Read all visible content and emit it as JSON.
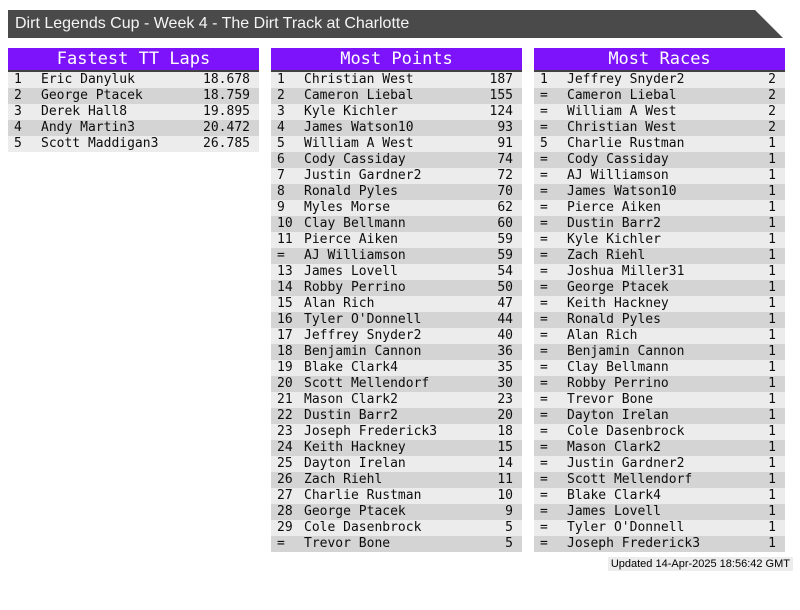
{
  "title": "Dirt Legends Cup - Week 4 - The Dirt Track at Charlotte",
  "colors": {
    "accent_purple": "#7d13fb",
    "titlebar_gray": "#4a4a4a",
    "row_light": "#ececec",
    "row_dark": "#d4d4d4"
  },
  "boards": [
    {
      "title": "Fastest TT Laps",
      "rows": [
        [
          "1",
          "Eric Danyluk",
          "18.678"
        ],
        [
          "2",
          "George Ptacek",
          "18.759"
        ],
        [
          "3",
          "Derek Hall8",
          "19.895"
        ],
        [
          "4",
          "Andy Martin3",
          "20.472"
        ],
        [
          "5",
          "Scott Maddigan3",
          "26.785"
        ]
      ]
    },
    {
      "title": "Most Points",
      "rows": [
        [
          "1",
          "Christian West",
          "187"
        ],
        [
          "2",
          "Cameron Liebal",
          "155"
        ],
        [
          "3",
          "Kyle Kichler",
          "124"
        ],
        [
          "4",
          "James Watson10",
          "93"
        ],
        [
          "5",
          "William A West",
          "91"
        ],
        [
          "6",
          "Cody Cassiday",
          "74"
        ],
        [
          "7",
          "Justin Gardner2",
          "72"
        ],
        [
          "8",
          "Ronald Pyles",
          "70"
        ],
        [
          "9",
          "Myles Morse",
          "62"
        ],
        [
          "10",
          "Clay Bellmann",
          "60"
        ],
        [
          "11",
          "Pierce Aiken",
          "59"
        ],
        [
          "=",
          "AJ Williamson",
          "59"
        ],
        [
          "13",
          "James Lovell",
          "54"
        ],
        [
          "14",
          "Robby Perrino",
          "50"
        ],
        [
          "15",
          "Alan Rich",
          "47"
        ],
        [
          "16",
          "Tyler O'Donnell",
          "44"
        ],
        [
          "17",
          "Jeffrey Snyder2",
          "40"
        ],
        [
          "18",
          "Benjamin Cannon",
          "36"
        ],
        [
          "19",
          "Blake Clark4",
          "35"
        ],
        [
          "20",
          "Scott Mellendorf",
          "30"
        ],
        [
          "21",
          "Mason Clark2",
          "23"
        ],
        [
          "22",
          "Dustin Barr2",
          "20"
        ],
        [
          "23",
          "Joseph Frederick3",
          "18"
        ],
        [
          "24",
          "Keith Hackney",
          "15"
        ],
        [
          "25",
          "Dayton Irelan",
          "14"
        ],
        [
          "26",
          "Zach Riehl",
          "11"
        ],
        [
          "27",
          "Charlie Rustman",
          "10"
        ],
        [
          "28",
          "George Ptacek",
          "9"
        ],
        [
          "29",
          "Cole Dasenbrock",
          "5"
        ],
        [
          "=",
          "Trevor Bone",
          "5"
        ]
      ]
    },
    {
      "title": "Most Races",
      "rows": [
        [
          "1",
          "Jeffrey Snyder2",
          "2"
        ],
        [
          "=",
          "Cameron Liebal",
          "2"
        ],
        [
          "=",
          "William A West",
          "2"
        ],
        [
          "=",
          "Christian West",
          "2"
        ],
        [
          "5",
          "Charlie Rustman",
          "1"
        ],
        [
          "=",
          "Cody Cassiday",
          "1"
        ],
        [
          "=",
          "AJ Williamson",
          "1"
        ],
        [
          "=",
          "James Watson10",
          "1"
        ],
        [
          "=",
          "Pierce Aiken",
          "1"
        ],
        [
          "=",
          "Dustin Barr2",
          "1"
        ],
        [
          "=",
          "Kyle Kichler",
          "1"
        ],
        [
          "=",
          "Zach Riehl",
          "1"
        ],
        [
          "=",
          "Joshua Miller31",
          "1"
        ],
        [
          "=",
          "George Ptacek",
          "1"
        ],
        [
          "=",
          "Keith Hackney",
          "1"
        ],
        [
          "=",
          "Ronald Pyles",
          "1"
        ],
        [
          "=",
          "Alan Rich",
          "1"
        ],
        [
          "=",
          "Benjamin Cannon",
          "1"
        ],
        [
          "=",
          "Clay Bellmann",
          "1"
        ],
        [
          "=",
          "Robby Perrino",
          "1"
        ],
        [
          "=",
          "Trevor Bone",
          "1"
        ],
        [
          "=",
          "Dayton Irelan",
          "1"
        ],
        [
          "=",
          "Cole Dasenbrock",
          "1"
        ],
        [
          "=",
          "Mason Clark2",
          "1"
        ],
        [
          "=",
          "Justin Gardner2",
          "1"
        ],
        [
          "=",
          "Scott Mellendorf",
          "1"
        ],
        [
          "=",
          "Blake Clark4",
          "1"
        ],
        [
          "=",
          "James Lovell",
          "1"
        ],
        [
          "=",
          "Tyler O'Donnell",
          "1"
        ],
        [
          "=",
          "Joseph Frederick3",
          "1"
        ]
      ]
    }
  ],
  "footer": {
    "updated": "Updated 14-Apr-2025 18:56:42 GMT"
  }
}
